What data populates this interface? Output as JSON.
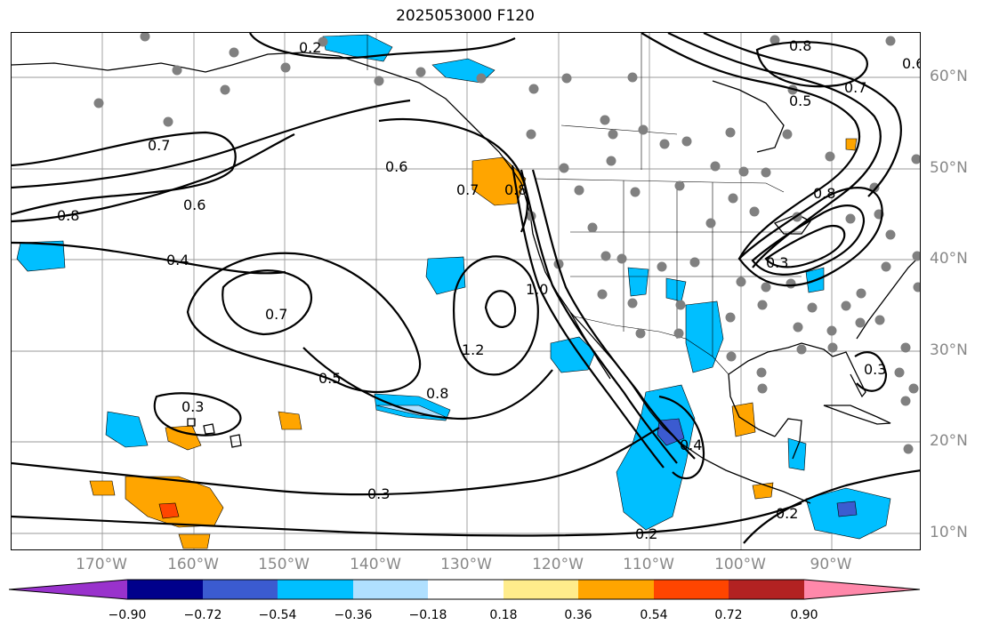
{
  "title": "2025053000 F120",
  "latitude_labels": [
    "60°N",
    "50°N",
    "40°N",
    "30°N",
    "20°N",
    "10°N"
  ],
  "longitude_labels": [
    "170°W",
    "160°W",
    "150°W",
    "140°W",
    "130°W",
    "120°W",
    "110°W",
    "100°W",
    "90°W"
  ],
  "contour_labels": [
    "0.2",
    "0.8",
    "0.6",
    "0.7",
    "0.5",
    "0.7",
    "0.8",
    "0.6",
    "0.4",
    "0.6",
    "0.7",
    "0.8",
    "0.7",
    "1.0",
    "1.2",
    "0.5",
    "0.8",
    "0.3",
    "0.3",
    "0.4",
    "0.3",
    "0.2",
    "0.2",
    "0.8",
    "0.3"
  ],
  "colorbar": {
    "tick_labels": [
      "−0.90",
      "−0.72",
      "−0.54",
      "−0.36",
      "−0.18",
      "0.18",
      "0.36",
      "0.54",
      "0.72",
      "0.90"
    ],
    "colors": [
      "#9932cc",
      "#00008b",
      "#3b5bd0",
      "#00bfff",
      "#b0e0ff",
      "#ffffff",
      "#ffec8b",
      "#ffa500",
      "#ff4500",
      "#b22222",
      "#ff88aa"
    ]
  },
  "shading_colors": {
    "neg_strong": "#3b5bd0",
    "neg_mid": "#00bfff",
    "neg_weak": "#b0e0ff",
    "pos_weak": "#ffec8b",
    "pos_mid": "#ffa500",
    "pos_strong": "#ff4500"
  },
  "station_color": "#808080"
}
